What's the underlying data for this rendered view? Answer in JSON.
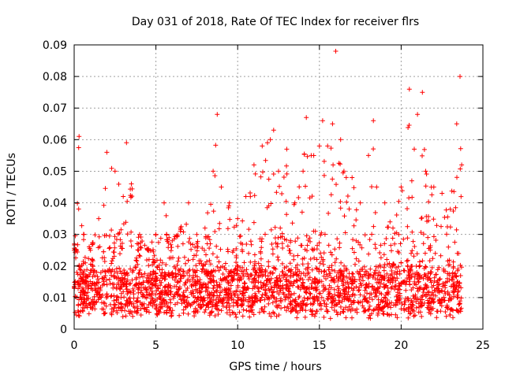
{
  "chart_data": {
    "type": "scatter",
    "title": "Day 031 of 2018, Rate Of TEC Index for receiver flrs",
    "xlabel": "GPS time / hours",
    "ylabel": "ROTI / TECUs",
    "xlim": [
      0,
      25
    ],
    "ylim": [
      0,
      0.09
    ],
    "x_ticks": [
      "0",
      "5",
      "10",
      "15",
      "20",
      "25"
    ],
    "y_ticks": [
      "0",
      "0.01",
      "0.02",
      "0.03",
      "0.04",
      "0.05",
      "0.06",
      "0.07",
      "0.08",
      "0.09"
    ],
    "x_tick_values": [
      0,
      5,
      10,
      15,
      20,
      25
    ],
    "y_tick_values": [
      0,
      0.01,
      0.02,
      0.03,
      0.04,
      0.05,
      0.06,
      0.07,
      0.08,
      0.09
    ],
    "grid": true,
    "marker": "+",
    "color": "#ff0000",
    "x_data_range": [
      0,
      23.7
    ],
    "envelope": [
      [
        0.0,
        0.025
      ],
      [
        0.3,
        0.061
      ],
      [
        0.6,
        0.03
      ],
      [
        1.0,
        0.025
      ],
      [
        1.5,
        0.035
      ],
      [
        2.0,
        0.056
      ],
      [
        2.5,
        0.05
      ],
      [
        3.0,
        0.042
      ],
      [
        3.2,
        0.059
      ],
      [
        3.5,
        0.046
      ],
      [
        4.0,
        0.03
      ],
      [
        4.5,
        0.025
      ],
      [
        5.0,
        0.03
      ],
      [
        5.5,
        0.04
      ],
      [
        6.0,
        0.028
      ],
      [
        6.5,
        0.032
      ],
      [
        7.0,
        0.04
      ],
      [
        7.5,
        0.03
      ],
      [
        8.0,
        0.032
      ],
      [
        8.5,
        0.05
      ],
      [
        8.75,
        0.068
      ],
      [
        9.0,
        0.045
      ],
      [
        9.5,
        0.04
      ],
      [
        10.0,
        0.035
      ],
      [
        10.5,
        0.042
      ],
      [
        11.0,
        0.052
      ],
      [
        11.5,
        0.058
      ],
      [
        12.0,
        0.06
      ],
      [
        12.2,
        0.063
      ],
      [
        12.5,
        0.05
      ],
      [
        13.0,
        0.057
      ],
      [
        13.5,
        0.04
      ],
      [
        14.0,
        0.05
      ],
      [
        14.2,
        0.067
      ],
      [
        14.5,
        0.055
      ],
      [
        15.0,
        0.058
      ],
      [
        15.2,
        0.066
      ],
      [
        15.5,
        0.058
      ],
      [
        15.8,
        0.065
      ],
      [
        16.0,
        0.088
      ],
      [
        16.3,
        0.06
      ],
      [
        16.5,
        0.05
      ],
      [
        17.0,
        0.048
      ],
      [
        17.5,
        0.04
      ],
      [
        18.0,
        0.055
      ],
      [
        18.3,
        0.066
      ],
      [
        18.5,
        0.045
      ],
      [
        19.0,
        0.04
      ],
      [
        19.5,
        0.032
      ],
      [
        20.0,
        0.045
      ],
      [
        20.5,
        0.076
      ],
      [
        20.8,
        0.057
      ],
      [
        21.0,
        0.068
      ],
      [
        21.3,
        0.075
      ],
      [
        21.5,
        0.05
      ],
      [
        22.0,
        0.045
      ],
      [
        22.5,
        0.043
      ],
      [
        23.0,
        0.038
      ],
      [
        23.4,
        0.065
      ],
      [
        23.6,
        0.08
      ],
      [
        23.7,
        0.052
      ]
    ],
    "baseline_min": 0.003
  }
}
